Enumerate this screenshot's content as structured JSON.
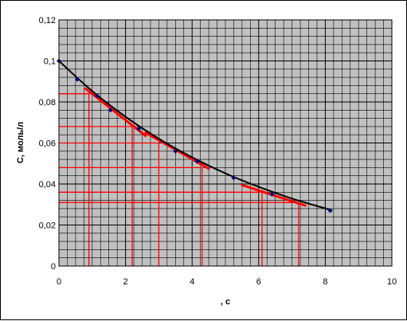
{
  "chart_data": {
    "type": "scatter",
    "title": "",
    "xlabel": ", с",
    "ylabel": "С, моль/л",
    "xlim": [
      0,
      10
    ],
    "ylim": [
      0,
      0.12
    ],
    "x_ticks": [
      0,
      2,
      4,
      6,
      8,
      10
    ],
    "y_ticks": [
      0,
      0.02,
      0.04,
      0.06,
      0.08,
      0.1,
      0.12
    ],
    "x_tick_labels": [
      "0",
      "2",
      "4",
      "6",
      "8",
      "10"
    ],
    "y_tick_labels": [
      "0",
      "0,02",
      "0,04",
      "0,06",
      "0,08",
      "0,1",
      "0,12"
    ],
    "grid": true,
    "legend": "none",
    "colors": {
      "plot_area": "#c0c0c0",
      "gridline": "#000000",
      "marker": "#000080",
      "curve": "#000000",
      "tangent": "#ff0000"
    },
    "series": [
      {
        "kind": "markers",
        "x": [
          0,
          0.55,
          1.15,
          1.55,
          2.4,
          3.5,
          4.15,
          5.25,
          6.4,
          8.15
        ],
        "y": [
          0.1,
          0.091,
          0.083,
          0.076,
          0.067,
          0.056,
          0.051,
          0.043,
          0.035,
          0.027
        ]
      },
      {
        "kind": "trend-curve",
        "x": [
          0,
          1,
          2,
          3,
          4,
          5,
          6,
          7,
          8,
          8.2
        ],
        "y": [
          0.1,
          0.0853,
          0.0728,
          0.0621,
          0.053,
          0.0452,
          0.0386,
          0.0329,
          0.0281,
          0.0272
        ]
      }
    ],
    "tangents": [
      {
        "x": [
          0.8,
          2.6
        ],
        "y": [
          0.0865,
          0.0635
        ]
      },
      {
        "x": [
          2.6,
          4.5
        ],
        "y": [
          0.065,
          0.0475
        ]
      },
      {
        "x": [
          5.5,
          7.4
        ],
        "y": [
          0.0395,
          0.0295
        ]
      }
    ],
    "guide_lines": [
      {
        "x": 0.9,
        "y": 0.084
      },
      {
        "x": 2.2,
        "y": 0.068
      },
      {
        "x": 3.0,
        "y": 0.06
      },
      {
        "x": 4.3,
        "y": 0.048
      },
      {
        "x": 6.1,
        "y": 0.036
      },
      {
        "x": 7.2,
        "y": 0.031
      }
    ]
  }
}
